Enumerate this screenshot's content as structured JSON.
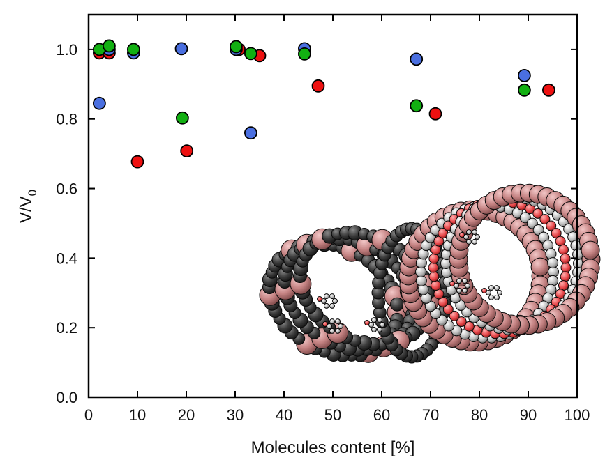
{
  "chart_data": {
    "type": "scatter",
    "title": "",
    "xlabel": "Molecules content [%]",
    "ylabel_main": "V/V",
    "ylabel_sub": "0",
    "xlim": [
      0,
      100
    ],
    "ylim": [
      0.0,
      1.1
    ],
    "x_ticks": [
      0,
      10,
      20,
      30,
      40,
      50,
      60,
      70,
      80,
      90,
      100
    ],
    "x_tick_labels": [
      "0",
      "10",
      "20",
      "30",
      "40",
      "50",
      "60",
      "70",
      "80",
      "90",
      "100"
    ],
    "y_ticks": [
      0.0,
      0.2,
      0.4,
      0.6,
      0.8,
      1.0
    ],
    "y_tick_labels": [
      "0.0",
      "0.2",
      "0.4",
      "0.6",
      "0.8",
      "1.0"
    ],
    "grid": false,
    "legend": "none",
    "series": [
      {
        "name": "red",
        "color": "#ee1111",
        "points": [
          [
            2.2,
            0.99
          ],
          [
            4.2,
            0.99
          ],
          [
            10.0,
            0.677
          ],
          [
            20.1,
            0.708
          ],
          [
            30.8,
            1.0
          ],
          [
            35.0,
            0.982
          ],
          [
            47.0,
            0.895
          ],
          [
            71.0,
            0.815
          ],
          [
            94.2,
            0.883
          ]
        ]
      },
      {
        "name": "blue",
        "color": "#4a6fe0",
        "points": [
          [
            2.2,
            0.845
          ],
          [
            4.2,
            1.0
          ],
          [
            9.2,
            0.99
          ],
          [
            19.0,
            1.002
          ],
          [
            30.2,
            1.0
          ],
          [
            33.2,
            0.76
          ],
          [
            44.2,
            1.002
          ],
          [
            67.1,
            0.972
          ],
          [
            89.2,
            0.925
          ]
        ]
      },
      {
        "name": "green",
        "color": "#12b012",
        "points": [
          [
            2.2,
            1.0
          ],
          [
            4.2,
            1.01
          ],
          [
            9.2,
            1.0
          ],
          [
            19.2,
            0.803
          ],
          [
            30.2,
            1.008
          ],
          [
            33.2,
            0.988
          ],
          [
            44.2,
            0.987
          ],
          [
            67.1,
            0.838
          ],
          [
            89.2,
            0.883
          ]
        ]
      }
    ],
    "inset": "molecular-structure-illustration"
  }
}
